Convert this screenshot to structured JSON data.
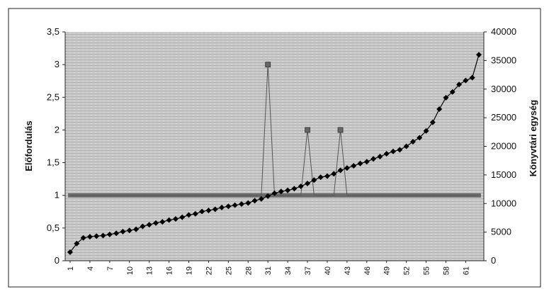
{
  "chart_data": {
    "type": "line",
    "title": "",
    "ylabel_left": "Előfordulás",
    "ylabel_right": "Könyvtári egység",
    "ylim_left": [
      0,
      3.5
    ],
    "ylim_right": [
      0,
      40000
    ],
    "yticks_left": [
      "0",
      "0,5",
      "1",
      "1,5",
      "2",
      "2,5",
      "3",
      "3,5"
    ],
    "yticks_right": [
      "0",
      "5000",
      "10000",
      "15000",
      "20000",
      "25000",
      "30000",
      "35000",
      "40000"
    ],
    "x": [
      1,
      2,
      3,
      4,
      5,
      6,
      7,
      8,
      9,
      10,
      11,
      12,
      13,
      14,
      15,
      16,
      17,
      18,
      19,
      20,
      21,
      22,
      23,
      24,
      25,
      26,
      27,
      28,
      29,
      30,
      31,
      32,
      33,
      34,
      35,
      36,
      37,
      38,
      39,
      40,
      41,
      42,
      43,
      44,
      45,
      46,
      47,
      48,
      49,
      50,
      51,
      52,
      53,
      54,
      55,
      56,
      57,
      58,
      59,
      60,
      61,
      62,
      63
    ],
    "xtick_labels": [
      "1",
      "4",
      "7",
      "10",
      "13",
      "16",
      "19",
      "22",
      "25",
      "28",
      "31",
      "34",
      "37",
      "40",
      "43",
      "46",
      "49",
      "52",
      "55",
      "58",
      "61"
    ],
    "grid": false,
    "legend": "none",
    "series": [
      {
        "axis": "right",
        "marker": "diamond",
        "color": "#000000",
        "values": [
          1500,
          3000,
          4000,
          4200,
          4300,
          4400,
          4600,
          4800,
          5100,
          5300,
          5500,
          6000,
          6300,
          6600,
          6800,
          7100,
          7300,
          7600,
          8000,
          8200,
          8600,
          8800,
          9000,
          9300,
          9500,
          9700,
          9900,
          10100,
          10500,
          10800,
          11300,
          11800,
          12100,
          12300,
          12600,
          13000,
          13500,
          14100,
          14600,
          14800,
          15200,
          15800,
          16200,
          16600,
          17000,
          17300,
          17800,
          18200,
          18700,
          19100,
          19400,
          20000,
          20800,
          21500,
          22700,
          24200,
          26500,
          28500,
          29500,
          30800,
          31500,
          32000,
          36000
        ]
      },
      {
        "axis": "left",
        "marker": "square",
        "color": "#555555",
        "values": [
          1,
          1,
          1,
          1,
          1,
          1,
          1,
          1,
          1,
          1,
          1,
          1,
          1,
          1,
          1,
          1,
          1,
          1,
          1,
          1,
          1,
          1,
          1,
          1,
          1,
          1,
          1,
          1,
          1,
          1,
          3,
          1,
          1,
          1,
          1,
          1,
          2,
          1,
          1,
          1,
          1,
          2,
          1,
          1,
          1,
          1,
          1,
          1,
          1,
          1,
          1,
          1,
          1,
          1,
          1,
          1,
          1,
          1,
          1,
          1,
          1,
          1,
          1
        ]
      }
    ]
  }
}
